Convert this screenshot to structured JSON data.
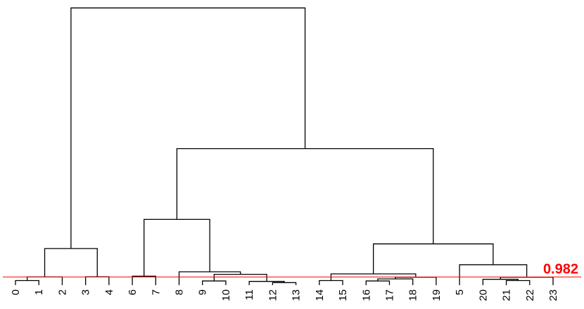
{
  "chart_data": {
    "type": "dendrogram",
    "leaves": [
      "0",
      "1",
      "2",
      "3",
      "4",
      "6",
      "7",
      "8",
      "9",
      "10",
      "11",
      "12",
      "13",
      "14",
      "15",
      "16",
      "17",
      "18",
      "19",
      "5",
      "20",
      "21",
      "22",
      "23"
    ],
    "merges": [
      {
        "children": [
          "0",
          "1"
        ],
        "height": 0.55
      },
      {
        "children": [
          24,
          "2"
        ],
        "height": 0.98
      },
      {
        "children": [
          "3",
          "4"
        ],
        "height": 1.0
      },
      {
        "children": [
          25,
          26
        ],
        "height": 4.4
      },
      {
        "children": [
          "6",
          "7"
        ],
        "height": 1.07
      },
      {
        "children": [
          "9",
          "10"
        ],
        "height": 0.5
      },
      {
        "children": [
          "12",
          "13"
        ],
        "height": 0.3
      },
      {
        "children": [
          "11",
          30
        ],
        "height": 0.45
      },
      {
        "children": [
          29,
          31
        ],
        "height": 1.3
      },
      {
        "children": [
          "8",
          32
        ],
        "height": 1.6
      },
      {
        "children": [
          28,
          33
        ],
        "height": 7.9
      },
      {
        "children": [
          "14",
          "15"
        ],
        "height": 0.55
      },
      {
        "children": [
          "16",
          "17"
        ],
        "height": 0.5
      },
      {
        "children": [
          36,
          "18"
        ],
        "height": 0.75
      },
      {
        "children": [
          37,
          "19"
        ],
        "height": 0.95
      },
      {
        "children": [
          35,
          38
        ],
        "height": 1.35
      },
      {
        "children": [
          "21",
          "22"
        ],
        "height": 0.55
      },
      {
        "children": [
          "20",
          40
        ],
        "height": 0.7
      },
      {
        "children": [
          41,
          "23"
        ],
        "height": 0.95
      },
      {
        "children": [
          "5",
          42
        ],
        "height": 2.45
      },
      {
        "children": [
          39,
          43
        ],
        "height": 4.95
      },
      {
        "children": [
          34,
          44
        ],
        "height": 16.4
      },
      {
        "children": [
          27,
          45
        ],
        "height": 33.3
      }
    ],
    "ylim": [
      0,
      34
    ],
    "threshold": {
      "value": 0.982,
      "label": "0.982",
      "color": "#ff0000"
    },
    "branch_color": "#000000"
  }
}
